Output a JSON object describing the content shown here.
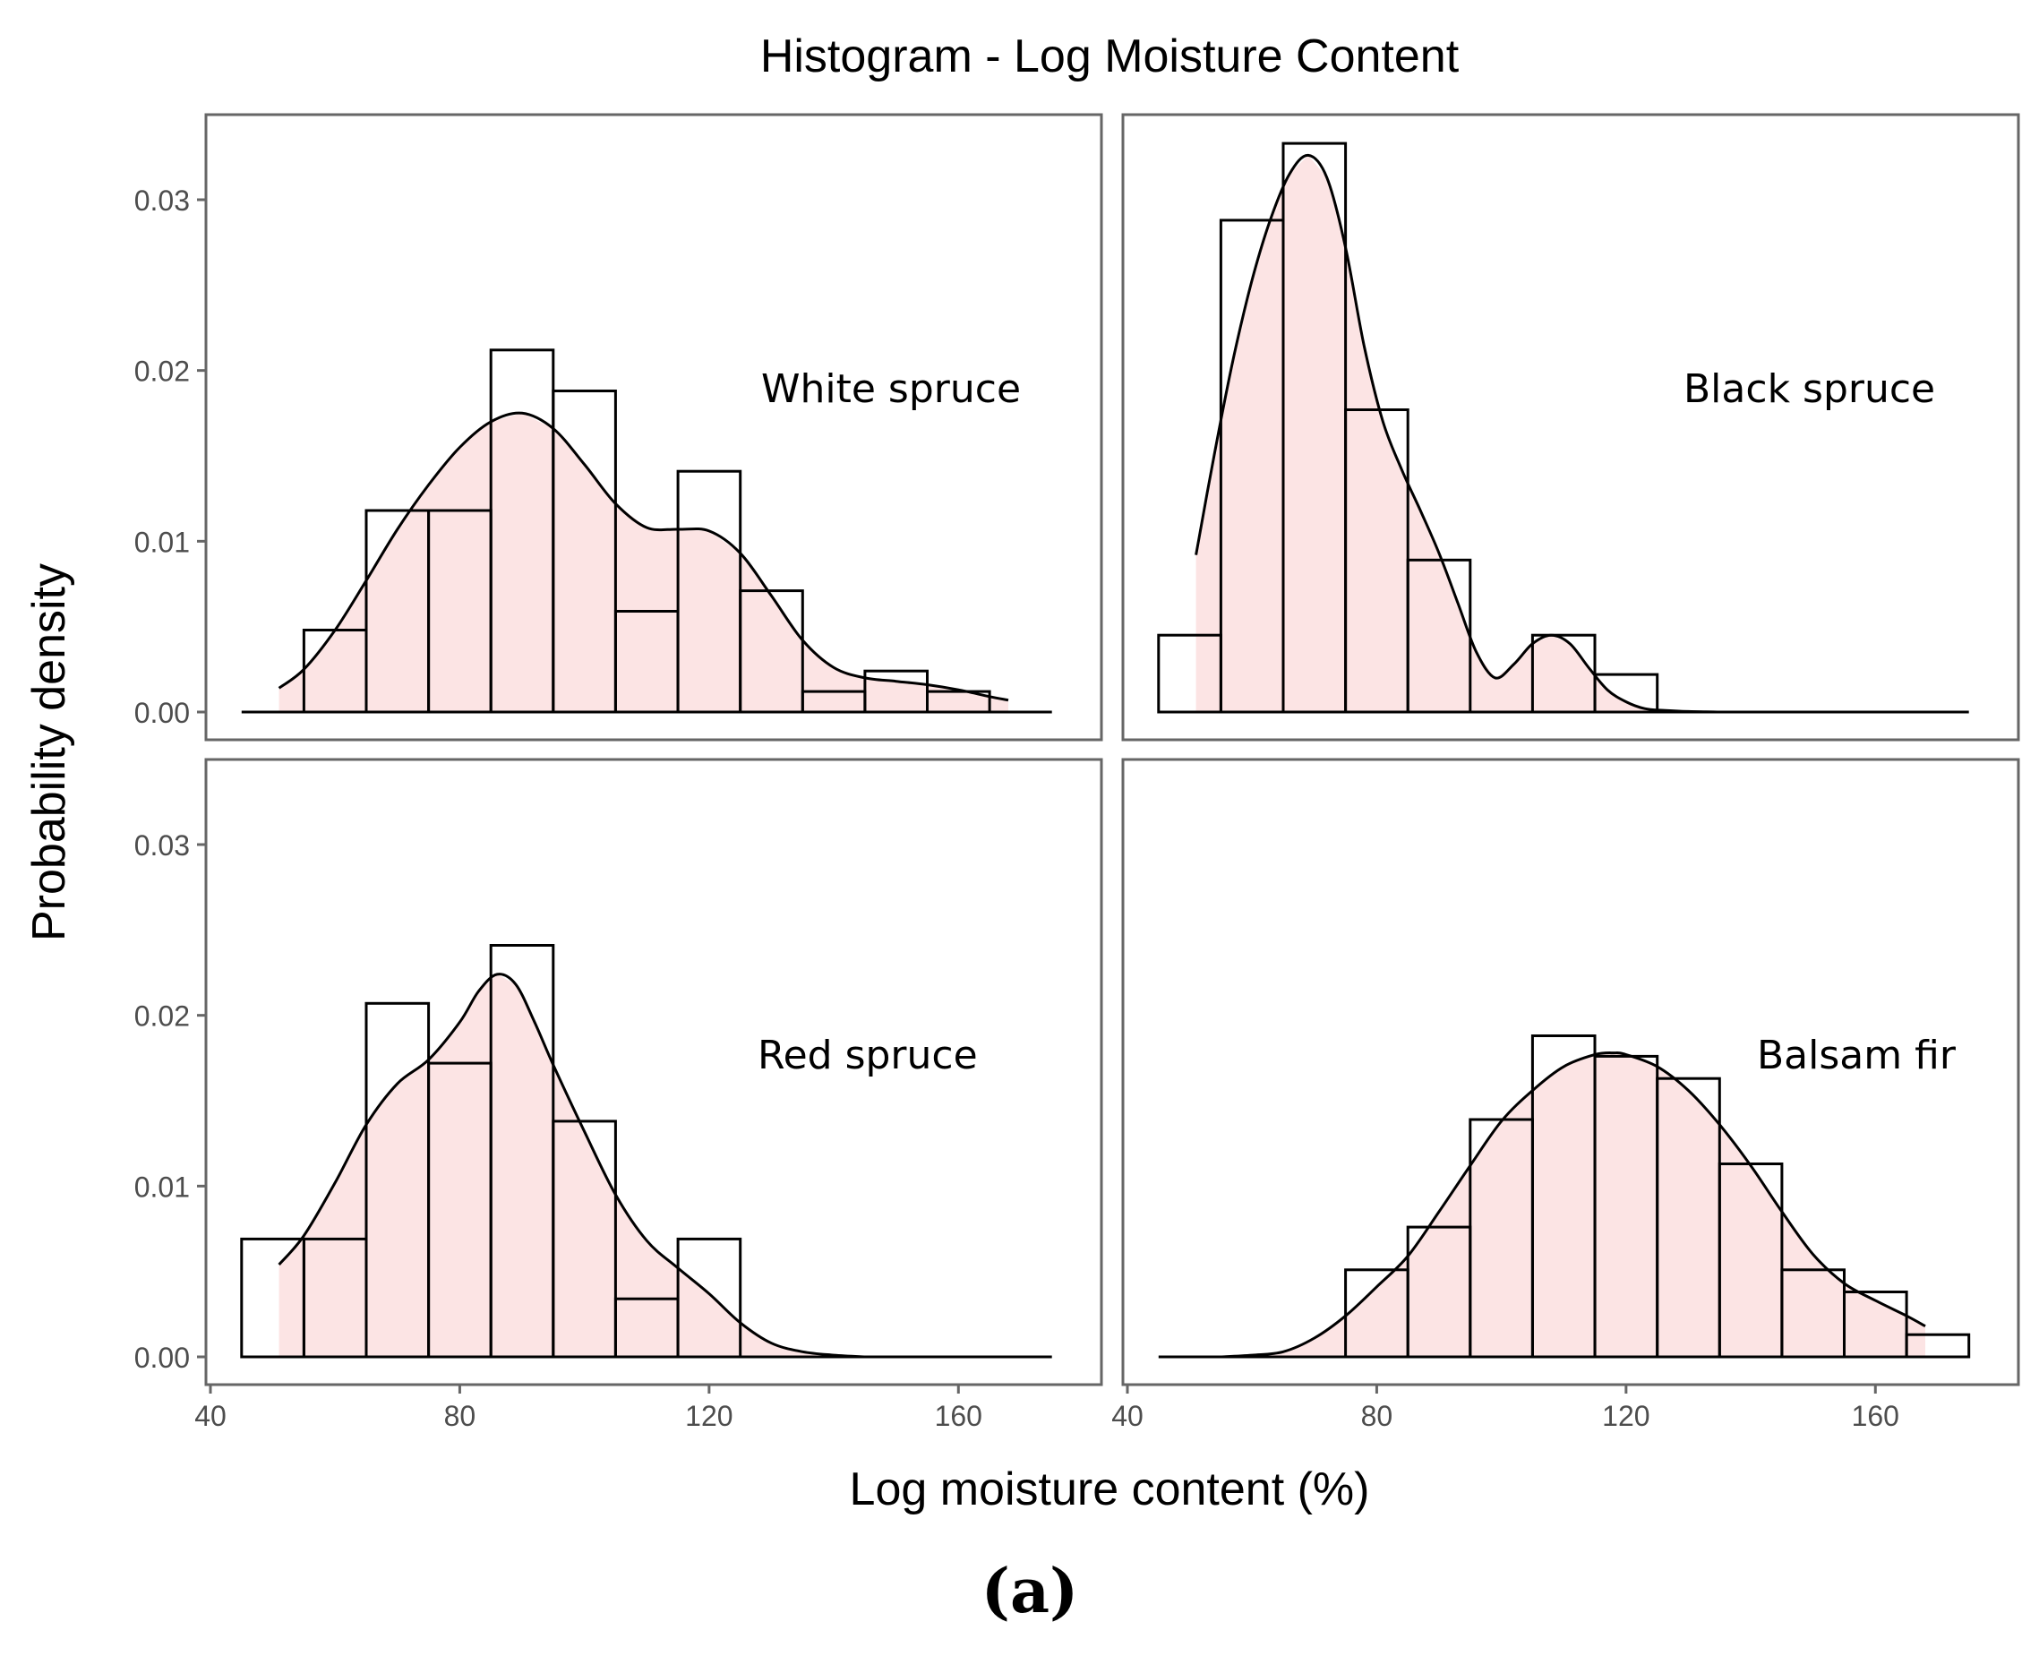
{
  "chart_data": {
    "type": "histogram",
    "title": "Histogram - Log Moisture Content",
    "xlabel": "Log moisture content (%)",
    "ylabel": "Probability density",
    "caption": "(a)",
    "xlim": [
      40,
      180
    ],
    "ylim": [
      0,
      0.035
    ],
    "x_ticks": [
      40,
      80,
      120,
      160
    ],
    "x_tick_labels": [
      "40",
      "80",
      "120",
      "160"
    ],
    "y_ticks": [
      0,
      0.01,
      0.02,
      0.03
    ],
    "y_tick_labels": [
      "0.00",
      "0.01",
      "0.02",
      "0.03"
    ],
    "bin_width": 10,
    "grid": false,
    "colors": {
      "fill": "#fce4e4",
      "stroke": "#000000",
      "frame": "#666666",
      "tick_text": "#4d4d4d"
    },
    "panels": [
      {
        "name": "White spruce",
        "bins": [
          {
            "x0": 55,
            "x1": 65,
            "density": 0.0048
          },
          {
            "x0": 65,
            "x1": 75,
            "density": 0.0118
          },
          {
            "x0": 75,
            "x1": 85,
            "density": 0.0118
          },
          {
            "x0": 85,
            "x1": 95,
            "density": 0.0212
          },
          {
            "x0": 95,
            "x1": 105,
            "density": 0.0188
          },
          {
            "x0": 105,
            "x1": 115,
            "density": 0.0059
          },
          {
            "x0": 115,
            "x1": 125,
            "density": 0.0141
          },
          {
            "x0": 125,
            "x1": 135,
            "density": 0.0071
          },
          {
            "x0": 135,
            "x1": 145,
            "density": 0.0012
          },
          {
            "x0": 145,
            "x1": 155,
            "density": 0.0024
          },
          {
            "x0": 155,
            "x1": 165,
            "density": 0.0012
          }
        ],
        "density_curve": {
          "x": [
            51,
            55,
            60,
            65,
            70,
            75,
            80,
            85,
            90,
            95,
            100,
            105,
            110,
            115,
            120,
            125,
            130,
            135,
            140,
            145,
            150,
            155,
            160,
            165,
            168
          ],
          "y": [
            0.0014,
            0.0025,
            0.0048,
            0.0077,
            0.0107,
            0.0133,
            0.0155,
            0.017,
            0.0175,
            0.0166,
            0.0145,
            0.0122,
            0.0108,
            0.0107,
            0.0106,
            0.0093,
            0.0068,
            0.0042,
            0.0026,
            0.002,
            0.0018,
            0.0016,
            0.0013,
            0.0009,
            0.0007
          ]
        }
      },
      {
        "name": "Black spruce",
        "bins": [
          {
            "x0": 45,
            "x1": 55,
            "density": 0.0045
          },
          {
            "x0": 55,
            "x1": 65,
            "density": 0.0288
          },
          {
            "x0": 65,
            "x1": 75,
            "density": 0.0333
          },
          {
            "x0": 75,
            "x1": 85,
            "density": 0.0177
          },
          {
            "x0": 85,
            "x1": 95,
            "density": 0.0089
          },
          {
            "x0": 95,
            "x1": 105,
            "density": 0
          },
          {
            "x0": 105,
            "x1": 115,
            "density": 0.0045
          },
          {
            "x0": 115,
            "x1": 125,
            "density": 0.0022
          }
        ],
        "density_curve": {
          "x": [
            51,
            54,
            57,
            60,
            63,
            66,
            69,
            72,
            75,
            78,
            81,
            84,
            87,
            90,
            93,
            96,
            99,
            102,
            105,
            108,
            111,
            114,
            117,
            120,
            123,
            126,
            130,
            135
          ],
          "y": [
            0.0092,
            0.0152,
            0.0207,
            0.0253,
            0.0289,
            0.0315,
            0.0326,
            0.0313,
            0.0272,
            0.0214,
            0.017,
            0.0142,
            0.0118,
            0.0093,
            0.0064,
            0.0035,
            0.002,
            0.0028,
            0.004,
            0.0045,
            0.004,
            0.0026,
            0.0013,
            0.0006,
            0.0002,
            0.0001,
            3e-05,
            0.0
          ]
        }
      },
      {
        "name": "Red spruce",
        "bins": [
          {
            "x0": 45,
            "x1": 55,
            "density": 0.0069
          },
          {
            "x0": 55,
            "x1": 65,
            "density": 0.0069
          },
          {
            "x0": 65,
            "x1": 75,
            "density": 0.0207
          },
          {
            "x0": 75,
            "x1": 85,
            "density": 0.0172
          },
          {
            "x0": 85,
            "x1": 95,
            "density": 0.0241
          },
          {
            "x0": 95,
            "x1": 105,
            "density": 0.0138
          },
          {
            "x0": 105,
            "x1": 115,
            "density": 0.0034
          },
          {
            "x0": 115,
            "x1": 125,
            "density": 0.0069
          }
        ],
        "density_curve": {
          "x": [
            51,
            55,
            60,
            65,
            70,
            75,
            80,
            83,
            86,
            89,
            92,
            95,
            100,
            105,
            110,
            115,
            120,
            125,
            130,
            135,
            140,
            145
          ],
          "y": [
            0.0054,
            0.0071,
            0.0102,
            0.0136,
            0.016,
            0.0174,
            0.0196,
            0.0214,
            0.0224,
            0.0218,
            0.0196,
            0.0171,
            0.0132,
            0.0095,
            0.0068,
            0.0052,
            0.0037,
            0.002,
            0.0008,
            0.0003,
            0.0001,
            0.0
          ]
        }
      },
      {
        "name": "Balsam fir",
        "bins": [
          {
            "x0": 75,
            "x1": 85,
            "density": 0.0051
          },
          {
            "x0": 85,
            "x1": 95,
            "density": 0.0076
          },
          {
            "x0": 95,
            "x1": 105,
            "density": 0.0139
          },
          {
            "x0": 105,
            "x1": 115,
            "density": 0.0188
          },
          {
            "x0": 115,
            "x1": 125,
            "density": 0.0176
          },
          {
            "x0": 125,
            "x1": 135,
            "density": 0.0163
          },
          {
            "x0": 135,
            "x1": 145,
            "density": 0.0113
          },
          {
            "x0": 145,
            "x1": 155,
            "density": 0.0051
          },
          {
            "x0": 155,
            "x1": 165,
            "density": 0.0038
          },
          {
            "x0": 165,
            "x1": 175,
            "density": 0.0013
          }
        ],
        "density_curve": {
          "x": [
            55,
            60,
            65,
            70,
            75,
            80,
            85,
            90,
            95,
            100,
            105,
            110,
            115,
            118,
            120,
            125,
            130,
            135,
            140,
            145,
            150,
            155,
            160,
            165,
            168
          ],
          "y": [
            0.0,
            0.0001,
            0.0003,
            0.0011,
            0.0024,
            0.0041,
            0.0059,
            0.0085,
            0.0112,
            0.0138,
            0.0156,
            0.017,
            0.0177,
            0.0178,
            0.0177,
            0.017,
            0.0156,
            0.0136,
            0.0112,
            0.0085,
            0.006,
            0.0043,
            0.0033,
            0.0024,
            0.0018
          ]
        }
      }
    ]
  }
}
